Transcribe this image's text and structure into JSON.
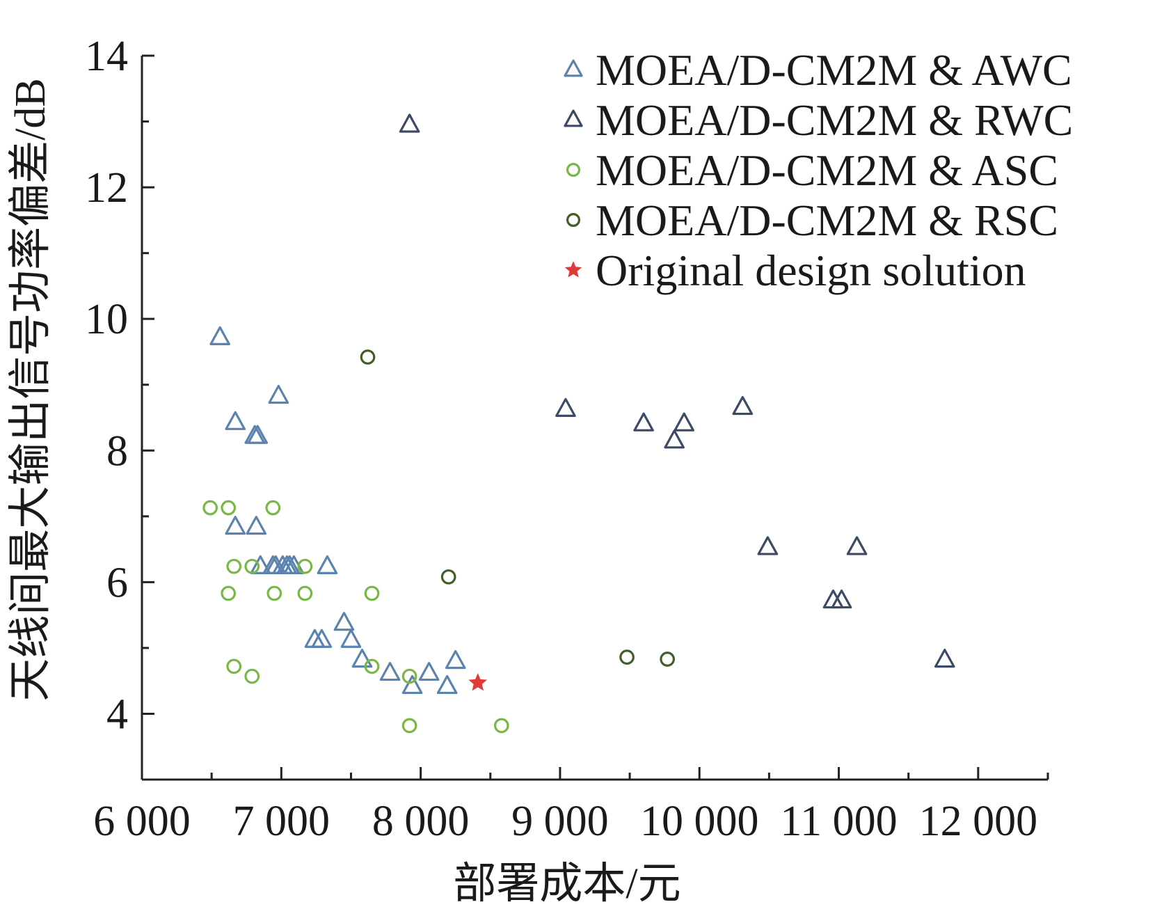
{
  "chart_data": {
    "type": "scatter",
    "xlabel": "部署成本/元",
    "ylabel": "天线间最大输出信号功率偏差/dB",
    "xlim": [
      6000,
      12500
    ],
    "ylim": [
      3,
      14
    ],
    "x_ticks": [
      6000,
      7000,
      8000,
      9000,
      10000,
      11000,
      12000
    ],
    "x_tick_labels": [
      "6 000",
      "7 000",
      "8 000",
      "9 000",
      "10 000",
      "11 000",
      "12 000"
    ],
    "y_ticks": [
      4,
      6,
      8,
      10,
      12,
      14
    ],
    "y_tick_labels": [
      "4",
      "6",
      "8",
      "10",
      "12",
      "14"
    ],
    "grid": false,
    "legend_position": "top-right",
    "series": [
      {
        "name": "MOEA/D-CM2M & AWC",
        "marker": "triangle",
        "color": "#5b83ad",
        "x": [
          6560,
          6670,
          6810,
          6830,
          6980,
          6670,
          6820,
          6850,
          6940,
          6960,
          7010,
          7040,
          7060,
          7090,
          7330,
          7240,
          7290,
          7450,
          7500,
          7580,
          7780,
          7940,
          8060,
          8190,
          8250
        ],
        "y": [
          9.72,
          8.43,
          8.22,
          8.22,
          8.83,
          6.84,
          6.84,
          6.24,
          6.24,
          6.24,
          6.24,
          6.24,
          6.24,
          6.24,
          6.24,
          5.12,
          5.12,
          5.38,
          5.12,
          4.82,
          4.62,
          4.42,
          4.62,
          4.42,
          4.8
        ]
      },
      {
        "name": "MOEA/D-CM2M & RWC",
        "marker": "triangle",
        "color": "#3c4a66",
        "x": [
          7920,
          9040,
          9600,
          9820,
          9890,
          10310,
          10490,
          10960,
          11020,
          11130,
          11760
        ],
        "y": [
          12.95,
          8.63,
          8.41,
          8.15,
          8.41,
          8.66,
          6.53,
          5.72,
          5.72,
          6.53,
          4.82
        ]
      },
      {
        "name": "MOEA/D-CM2M & ASC",
        "marker": "circle",
        "color": "#7ab648",
        "x": [
          6490,
          6620,
          6940,
          6660,
          6790,
          7170,
          6620,
          6950,
          7170,
          7650,
          6660,
          6790,
          7650,
          7920,
          7920,
          8580
        ],
        "y": [
          7.13,
          7.13,
          7.13,
          6.24,
          6.24,
          6.24,
          5.83,
          5.83,
          5.83,
          5.83,
          4.72,
          4.57,
          4.72,
          4.57,
          3.82,
          3.82
        ]
      },
      {
        "name": "MOEA/D-CM2M & RSC",
        "marker": "circle",
        "color": "#3f5e2a",
        "x": [
          7620,
          8200,
          9480,
          9770
        ],
        "y": [
          9.42,
          6.08,
          4.86,
          4.83
        ]
      },
      {
        "name": "Original design solution",
        "marker": "star",
        "color": "#e03b3b",
        "x": [
          8410
        ],
        "y": [
          4.47
        ]
      }
    ]
  }
}
